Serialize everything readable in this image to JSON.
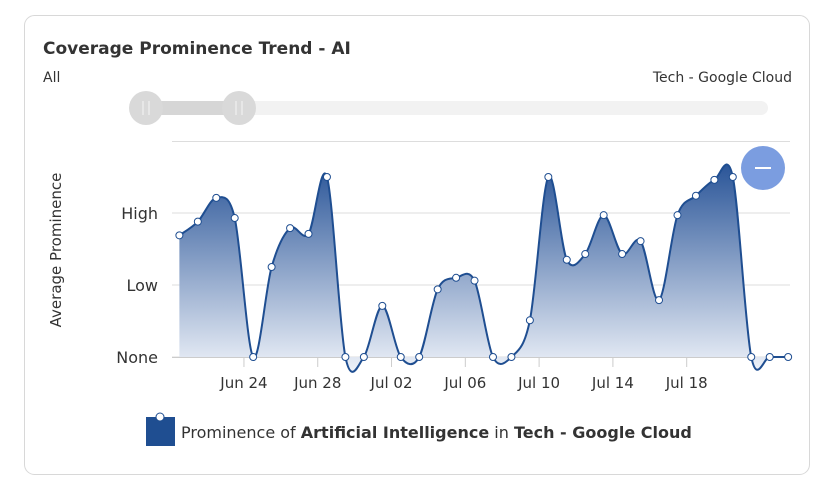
{
  "chart_data": {
    "type": "areaspline",
    "title": "Coverage Prominence Trend - AI",
    "slider": {
      "left_label": "All",
      "right_label": "Tech - Google Cloud"
    },
    "y_label": "Average Prominence",
    "x": [
      20.5,
      21.5,
      22.5,
      23.5,
      24.5,
      25.5,
      26.5,
      27.5,
      28.5,
      29.5,
      30.5,
      31.5,
      32.5,
      33.5,
      34.5,
      35.5,
      36.5,
      37.5,
      38.5,
      39.5,
      40.5,
      41.5,
      42.5,
      43.5,
      44.5,
      45.5,
      46.5,
      47.5,
      48.5,
      49.5,
      50.5,
      51.5,
      52.5,
      53.5
    ],
    "series": [
      {
        "name_parts": [
          "Prominence of ",
          "Artificial Intelligence",
          " in ",
          "Tech - Google Cloud"
        ],
        "color": "#1f4e91",
        "values": [
          1.69,
          1.88,
          2.21,
          1.93,
          0,
          1.25,
          1.79,
          1.71,
          2.5,
          0,
          0,
          0.71,
          0,
          0,
          0.94,
          1.1,
          1.06,
          0,
          0,
          0.51,
          2.5,
          1.35,
          1.43,
          1.97,
          1.43,
          1.61,
          0.79,
          1.97,
          2.24,
          2.46,
          2.5,
          0,
          0,
          0
        ]
      }
    ],
    "xlim": [
      20.1,
      53.6
    ],
    "xticks": [
      {
        "value": 24,
        "label": "Jun 24"
      },
      {
        "value": 28,
        "label": "Jun 28"
      },
      {
        "value": 32,
        "label": "Jul 02"
      },
      {
        "value": 36,
        "label": "Jul 06"
      },
      {
        "value": 40,
        "label": "Jul 10"
      },
      {
        "value": 44,
        "label": "Jul 14"
      },
      {
        "value": 48,
        "label": "Jul 18"
      }
    ],
    "ylim": [
      0,
      3
    ],
    "yticks": [
      {
        "value": 0,
        "label": "None"
      },
      {
        "value": 1,
        "label": "Low"
      },
      {
        "value": 2,
        "label": "High"
      }
    ],
    "grid": true
  }
}
